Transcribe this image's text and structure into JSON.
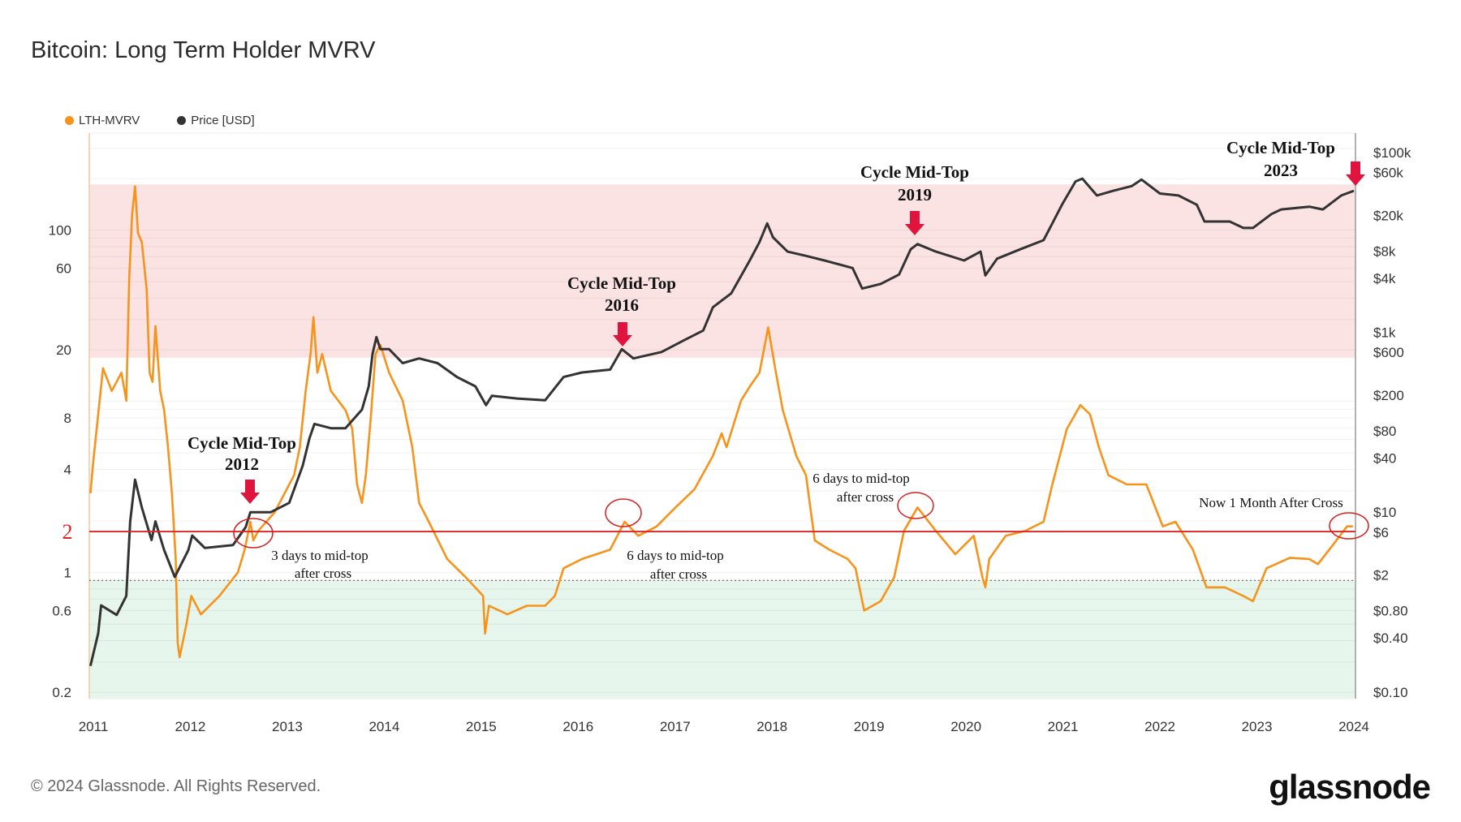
{
  "title": "Bitcoin: Long Term Holder MVRV",
  "legend": [
    {
      "label": "LTH-MVRV",
      "color": "#f7931a"
    },
    {
      "label": "Price [USD]",
      "color": "#333333"
    }
  ],
  "footer": "© 2024 Glassnode. All Rights Reserved.",
  "logo": "glassnode",
  "chart_data": {
    "type": "line",
    "title": "Bitcoin: Long Term Holder MVRV",
    "x_ticks": [
      "2011",
      "2012",
      "2013",
      "2014",
      "2015",
      "2016",
      "2017",
      "2018",
      "2019",
      "2020",
      "2021",
      "2022",
      "2023",
      "2024"
    ],
    "left_axis": {
      "scale": "log",
      "ticks": [
        "100",
        "60",
        "20",
        "8",
        "4",
        "2",
        "1",
        "0.6",
        "0.2"
      ],
      "tick_values": [
        100,
        60,
        20,
        8,
        4,
        2,
        1,
        0.6,
        0.2
      ]
    },
    "right_axis": {
      "scale": "log",
      "ticks": [
        "$100k",
        "$60k",
        "$20k",
        "$8k",
        "$4k",
        "$1k",
        "$600",
        "$200",
        "$80",
        "$40",
        "$10",
        "$6",
        "$2",
        "$0.80",
        "$0.40",
        "$0.10"
      ],
      "tick_values": [
        100000,
        60000,
        20000,
        8000,
        4000,
        1000,
        600,
        200,
        80,
        40,
        10,
        6,
        2,
        0.8,
        0.4,
        0.1
      ]
    },
    "grid": true,
    "legend_position": "top-left",
    "bands": [
      {
        "from": 18,
        "to": 185,
        "color": "#fbe3e3"
      },
      {
        "from": 0.18,
        "to": 0.9,
        "color": "#e6f6ec"
      }
    ],
    "threshold": {
      "value": 2,
      "label": "2",
      "color": "#e02424"
    },
    "lower_reference": 0.9,
    "series": [
      {
        "name": "LTH-MVRV",
        "axis": "left",
        "color": "#f7931a",
        "points": [
          [
            2010.97,
            2.9
          ],
          [
            2011.0,
            4.5
          ],
          [
            2011.1,
            15.6
          ],
          [
            2011.19,
            11.5
          ],
          [
            2011.29,
            14.7
          ],
          [
            2011.34,
            10.1
          ],
          [
            2011.37,
            52
          ],
          [
            2011.4,
            124
          ],
          [
            2011.43,
            180
          ],
          [
            2011.46,
            96
          ],
          [
            2011.5,
            85
          ],
          [
            2011.55,
            45
          ],
          [
            2011.58,
            14.7
          ],
          [
            2011.61,
            13
          ],
          [
            2011.64,
            27.5
          ],
          [
            2011.69,
            11.5
          ],
          [
            2011.73,
            8.9
          ],
          [
            2011.77,
            5.4
          ],
          [
            2011.81,
            2.9
          ],
          [
            2011.85,
            1.2
          ],
          [
            2011.87,
            0.39
          ],
          [
            2011.89,
            0.32
          ],
          [
            2011.96,
            0.5
          ],
          [
            2012.01,
            0.73
          ],
          [
            2012.11,
            0.57
          ],
          [
            2012.3,
            0.73
          ],
          [
            2012.49,
            1.0
          ],
          [
            2012.56,
            1.36
          ],
          [
            2012.62,
            1.98
          ],
          [
            2012.65,
            1.54
          ],
          [
            2012.7,
            1.75
          ],
          [
            2012.87,
            2.25
          ],
          [
            2013.07,
            3.7
          ],
          [
            2013.13,
            5.4
          ],
          [
            2013.19,
            11.5
          ],
          [
            2013.24,
            18.9
          ],
          [
            2013.27,
            31
          ],
          [
            2013.31,
            14.7
          ],
          [
            2013.36,
            18.9
          ],
          [
            2013.45,
            11.5
          ],
          [
            2013.6,
            8.9
          ],
          [
            2013.67,
            6.9
          ],
          [
            2013.72,
            3.27
          ],
          [
            2013.77,
            2.55
          ],
          [
            2013.81,
            3.7
          ],
          [
            2013.86,
            7.9
          ],
          [
            2013.91,
            18.9
          ],
          [
            2013.96,
            21.4
          ],
          [
            2014.05,
            14.7
          ],
          [
            2014.19,
            10.1
          ],
          [
            2014.29,
            5.4
          ],
          [
            2014.36,
            2.55
          ],
          [
            2014.46,
            1.98
          ],
          [
            2014.65,
            1.2
          ],
          [
            2014.84,
            0.94
          ],
          [
            2015.02,
            0.73
          ],
          [
            2015.04,
            0.44
          ],
          [
            2015.08,
            0.64
          ],
          [
            2015.27,
            0.57
          ],
          [
            2015.47,
            0.64
          ],
          [
            2015.66,
            0.64
          ],
          [
            2015.76,
            0.73
          ],
          [
            2015.85,
            1.06
          ],
          [
            2016.04,
            1.2
          ],
          [
            2016.33,
            1.36
          ],
          [
            2016.48,
            1.98
          ],
          [
            2016.62,
            1.64
          ],
          [
            2016.81,
            1.86
          ],
          [
            2017.0,
            2.39
          ],
          [
            2017.2,
            3.07
          ],
          [
            2017.39,
            4.8
          ],
          [
            2017.48,
            6.5
          ],
          [
            2017.53,
            5.4
          ],
          [
            2017.68,
            10.1
          ],
          [
            2017.77,
            12.2
          ],
          [
            2017.87,
            14.7
          ],
          [
            2017.96,
            27
          ],
          [
            2018.04,
            14.7
          ],
          [
            2018.11,
            8.9
          ],
          [
            2018.25,
            4.8
          ],
          [
            2018.35,
            3.7
          ],
          [
            2018.44,
            1.54
          ],
          [
            2018.59,
            1.36
          ],
          [
            2018.78,
            1.2
          ],
          [
            2018.86,
            1.06
          ],
          [
            2018.95,
            0.6
          ],
          [
            2019.12,
            0.68
          ],
          [
            2019.26,
            0.94
          ],
          [
            2019.36,
            1.75
          ],
          [
            2019.5,
            2.4
          ],
          [
            2019.69,
            1.75
          ],
          [
            2019.89,
            1.28
          ],
          [
            2020.08,
            1.64
          ],
          [
            2020.17,
            0.94
          ],
          [
            2020.2,
            0.82
          ],
          [
            2020.24,
            1.2
          ],
          [
            2020.41,
            1.64
          ],
          [
            2020.61,
            1.75
          ],
          [
            2020.8,
            1.98
          ],
          [
            2020.89,
            3.27
          ],
          [
            2021.04,
            6.9
          ],
          [
            2021.18,
            9.5
          ],
          [
            2021.28,
            8.4
          ],
          [
            2021.37,
            5.4
          ],
          [
            2021.47,
            3.7
          ],
          [
            2021.66,
            3.27
          ],
          [
            2021.86,
            3.27
          ],
          [
            2022.03,
            1.86
          ],
          [
            2022.16,
            1.98
          ],
          [
            2022.34,
            1.36
          ],
          [
            2022.48,
            0.82
          ],
          [
            2022.67,
            0.82
          ],
          [
            2022.86,
            0.73
          ],
          [
            2022.96,
            0.68
          ],
          [
            2023.1,
            1.06
          ],
          [
            2023.34,
            1.22
          ],
          [
            2023.54,
            1.2
          ],
          [
            2023.63,
            1.12
          ],
          [
            2023.78,
            1.44
          ],
          [
            2023.93,
            1.86
          ],
          [
            2023.99,
            1.86
          ]
        ]
      },
      {
        "name": "Price [USD]",
        "axis": "right",
        "color": "#333333",
        "points": [
          [
            2010.97,
            0.195
          ],
          [
            2011.05,
            0.45
          ],
          [
            2011.08,
            0.92
          ],
          [
            2011.24,
            0.72
          ],
          [
            2011.34,
            1.17
          ],
          [
            2011.38,
            7.9
          ],
          [
            2011.43,
            23
          ],
          [
            2011.5,
            11.3
          ],
          [
            2011.6,
            4.9
          ],
          [
            2011.64,
            7.9
          ],
          [
            2011.73,
            3.8
          ],
          [
            2011.84,
            1.9
          ],
          [
            2011.98,
            3.8
          ],
          [
            2012.02,
            5.5
          ],
          [
            2012.15,
            4.0
          ],
          [
            2012.44,
            4.3
          ],
          [
            2012.57,
            6.8
          ],
          [
            2012.62,
            10
          ],
          [
            2012.83,
            10
          ],
          [
            2013.02,
            12.7
          ],
          [
            2013.16,
            33
          ],
          [
            2013.23,
            67
          ],
          [
            2013.28,
            96
          ],
          [
            2013.45,
            86
          ],
          [
            2013.6,
            86
          ],
          [
            2013.77,
            138
          ],
          [
            2013.84,
            251
          ],
          [
            2013.88,
            578
          ],
          [
            2013.92,
            887
          ],
          [
            2013.96,
            650
          ],
          [
            2014.05,
            650
          ],
          [
            2014.19,
            455
          ],
          [
            2014.36,
            513
          ],
          [
            2014.55,
            455
          ],
          [
            2014.75,
            319
          ],
          [
            2014.94,
            251
          ],
          [
            2015.05,
            155
          ],
          [
            2015.11,
            197
          ],
          [
            2015.37,
            184
          ],
          [
            2015.66,
            176
          ],
          [
            2015.85,
            319
          ],
          [
            2016.04,
            358
          ],
          [
            2016.33,
            385
          ],
          [
            2016.45,
            650
          ],
          [
            2016.57,
            513
          ],
          [
            2016.86,
            605
          ],
          [
            2017.1,
            826
          ],
          [
            2017.29,
            1050
          ],
          [
            2017.39,
            1900
          ],
          [
            2017.58,
            2720
          ],
          [
            2017.77,
            6300
          ],
          [
            2017.87,
            10100
          ],
          [
            2017.95,
            16300
          ],
          [
            2018.01,
            11400
          ],
          [
            2018.16,
            7900
          ],
          [
            2018.35,
            7100
          ],
          [
            2018.54,
            6300
          ],
          [
            2018.83,
            5200
          ],
          [
            2018.93,
            3070
          ],
          [
            2019.12,
            3460
          ],
          [
            2019.31,
            4400
          ],
          [
            2019.43,
            8400
          ],
          [
            2019.5,
            9600
          ],
          [
            2019.69,
            7900
          ],
          [
            2019.98,
            6300
          ],
          [
            2020.15,
            7900
          ],
          [
            2020.2,
            4300
          ],
          [
            2020.32,
            6600
          ],
          [
            2020.56,
            8400
          ],
          [
            2020.8,
            10600
          ],
          [
            2020.89,
            16300
          ],
          [
            2020.99,
            26300
          ],
          [
            2021.13,
            47700
          ],
          [
            2021.2,
            51300
          ],
          [
            2021.35,
            33300
          ],
          [
            2021.52,
            37600
          ],
          [
            2021.71,
            42400
          ],
          [
            2021.81,
            50100
          ],
          [
            2022.0,
            35000
          ],
          [
            2022.19,
            33300
          ],
          [
            2022.38,
            26300
          ],
          [
            2022.46,
            17100
          ],
          [
            2022.72,
            17100
          ],
          [
            2022.86,
            14500
          ],
          [
            2022.96,
            14500
          ],
          [
            2023.15,
            20700
          ],
          [
            2023.25,
            23300
          ],
          [
            2023.54,
            25000
          ],
          [
            2023.68,
            23300
          ],
          [
            2023.87,
            33300
          ],
          [
            2024.0,
            37600
          ]
        ]
      }
    ],
    "annotations": [
      {
        "title": "Cycle Mid-Top",
        "year": "2012",
        "note": [
          "3 days to mid-top",
          "after cross"
        ]
      },
      {
        "title": "Cycle Mid-Top",
        "year": "2016",
        "note": [
          "6 days to mid-top",
          "after cross"
        ]
      },
      {
        "title": "Cycle Mid-Top",
        "year": "2019",
        "note": [
          "6 days to mid-top",
          "after cross"
        ]
      },
      {
        "title": "Cycle Mid-Top",
        "year": "2023",
        "note": [
          "Now 1 Month After Cross"
        ]
      }
    ]
  }
}
